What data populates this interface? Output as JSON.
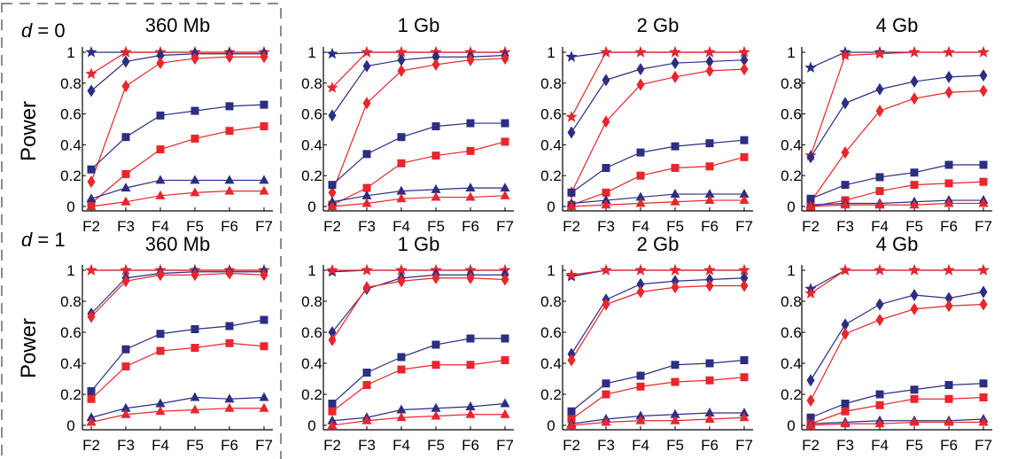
{
  "labels": {
    "ylabel": "Power",
    "row_labels": [
      "d = 0",
      "d = 1"
    ],
    "row_var": "d",
    "row_values": [
      "0",
      "1"
    ]
  },
  "colors": {
    "series_a": "#2b2e82",
    "series_b": "#e8262b",
    "axis": "#000000",
    "frame": "#666666"
  },
  "chart_data": [
    {
      "type": "line",
      "title": "360 Mb",
      "row": "d = 0",
      "categories": [
        "F2",
        "F3",
        "F4",
        "F5",
        "F6",
        "F7"
      ],
      "ylim": [
        0,
        1
      ],
      "yticks": [
        "0",
        "0.2",
        "0.4",
        "0.6",
        "0.8",
        "1"
      ],
      "series": [
        {
          "color": "#2b2e82",
          "marker": "star",
          "values": [
            1.0,
            1.0,
            1.0,
            1.0,
            1.0,
            1.0
          ]
        },
        {
          "color": "#e8262b",
          "marker": "star",
          "values": [
            0.86,
            1.0,
            1.0,
            1.0,
            1.0,
            1.0
          ]
        },
        {
          "color": "#2b2e82",
          "marker": "diamond",
          "values": [
            0.75,
            0.94,
            0.98,
            0.99,
            0.99,
            0.99
          ]
        },
        {
          "color": "#e8262b",
          "marker": "diamond",
          "values": [
            0.16,
            0.78,
            0.93,
            0.96,
            0.97,
            0.97
          ]
        },
        {
          "color": "#2b2e82",
          "marker": "square",
          "values": [
            0.24,
            0.45,
            0.59,
            0.62,
            0.65,
            0.66
          ]
        },
        {
          "color": "#e8262b",
          "marker": "square",
          "values": [
            0.02,
            0.21,
            0.37,
            0.44,
            0.49,
            0.52
          ]
        },
        {
          "color": "#2b2e82",
          "marker": "triangle",
          "values": [
            0.05,
            0.12,
            0.17,
            0.17,
            0.17,
            0.17
          ]
        },
        {
          "color": "#e8262b",
          "marker": "triangle",
          "values": [
            0.0,
            0.03,
            0.07,
            0.09,
            0.1,
            0.1
          ]
        }
      ]
    },
    {
      "type": "line",
      "title": "1 Gb",
      "row": "d = 0",
      "categories": [
        "F2",
        "F3",
        "F4",
        "F5",
        "F6",
        "F7"
      ],
      "ylim": [
        0,
        1
      ],
      "yticks": [
        "0",
        "0.2",
        "0.4",
        "0.6",
        "0.8",
        "1"
      ],
      "series": [
        {
          "color": "#2b2e82",
          "marker": "star",
          "values": [
            0.99,
            1.0,
            1.0,
            1.0,
            1.0,
            1.0
          ]
        },
        {
          "color": "#e8262b",
          "marker": "star",
          "values": [
            0.77,
            1.0,
            1.0,
            1.0,
            1.0,
            1.0
          ]
        },
        {
          "color": "#2b2e82",
          "marker": "diamond",
          "values": [
            0.59,
            0.91,
            0.95,
            0.97,
            0.97,
            0.98
          ]
        },
        {
          "color": "#e8262b",
          "marker": "diamond",
          "values": [
            0.09,
            0.67,
            0.88,
            0.92,
            0.95,
            0.96
          ]
        },
        {
          "color": "#2b2e82",
          "marker": "square",
          "values": [
            0.14,
            0.34,
            0.45,
            0.52,
            0.54,
            0.54
          ]
        },
        {
          "color": "#e8262b",
          "marker": "square",
          "values": [
            0.01,
            0.12,
            0.28,
            0.33,
            0.36,
            0.42
          ]
        },
        {
          "color": "#2b2e82",
          "marker": "triangle",
          "values": [
            0.03,
            0.07,
            0.1,
            0.11,
            0.12,
            0.12
          ]
        },
        {
          "color": "#e8262b",
          "marker": "triangle",
          "values": [
            0.0,
            0.02,
            0.05,
            0.06,
            0.06,
            0.07
          ]
        }
      ]
    },
    {
      "type": "line",
      "title": "2 Gb",
      "row": "d = 0",
      "categories": [
        "F2",
        "F3",
        "F4",
        "F5",
        "F6",
        "F7"
      ],
      "ylim": [
        0,
        1
      ],
      "yticks": [
        "0",
        "0.2",
        "0.4",
        "0.6",
        "0.8",
        "1"
      ],
      "series": [
        {
          "color": "#2b2e82",
          "marker": "star",
          "values": [
            0.97,
            1.0,
            1.0,
            1.0,
            1.0,
            1.0
          ]
        },
        {
          "color": "#e8262b",
          "marker": "star",
          "values": [
            0.58,
            1.0,
            1.0,
            1.0,
            1.0,
            1.0
          ]
        },
        {
          "color": "#2b2e82",
          "marker": "diamond",
          "values": [
            0.48,
            0.82,
            0.89,
            0.93,
            0.94,
            0.95
          ]
        },
        {
          "color": "#e8262b",
          "marker": "diamond",
          "values": [
            0.09,
            0.55,
            0.79,
            0.84,
            0.88,
            0.89
          ]
        },
        {
          "color": "#2b2e82",
          "marker": "square",
          "values": [
            0.09,
            0.25,
            0.35,
            0.39,
            0.41,
            0.43
          ]
        },
        {
          "color": "#e8262b",
          "marker": "square",
          "values": [
            0.01,
            0.09,
            0.2,
            0.25,
            0.26,
            0.32
          ]
        },
        {
          "color": "#2b2e82",
          "marker": "triangle",
          "values": [
            0.02,
            0.04,
            0.06,
            0.08,
            0.08,
            0.08
          ]
        },
        {
          "color": "#e8262b",
          "marker": "triangle",
          "values": [
            0.0,
            0.01,
            0.02,
            0.03,
            0.04,
            0.04
          ]
        }
      ]
    },
    {
      "type": "line",
      "title": "4 Gb",
      "row": "d = 0",
      "categories": [
        "F2",
        "F3",
        "F4",
        "F5",
        "F6",
        "F7"
      ],
      "ylim": [
        0,
        1
      ],
      "yticks": [
        "0",
        "0.2",
        "0.4",
        "0.6",
        "0.8",
        "1"
      ],
      "series": [
        {
          "color": "#2b2e82",
          "marker": "star",
          "values": [
            0.9,
            1.0,
            1.0,
            1.0,
            1.0,
            1.0
          ]
        },
        {
          "color": "#e8262b",
          "marker": "star",
          "values": [
            0.33,
            0.98,
            0.99,
            1.0,
            1.0,
            1.0
          ]
        },
        {
          "color": "#2b2e82",
          "marker": "diamond",
          "values": [
            0.32,
            0.67,
            0.76,
            0.81,
            0.84,
            0.85
          ]
        },
        {
          "color": "#e8262b",
          "marker": "diamond",
          "values": [
            0.03,
            0.35,
            0.62,
            0.7,
            0.74,
            0.75
          ]
        },
        {
          "color": "#2b2e82",
          "marker": "square",
          "values": [
            0.05,
            0.14,
            0.19,
            0.22,
            0.27,
            0.27
          ]
        },
        {
          "color": "#e8262b",
          "marker": "square",
          "values": [
            0.0,
            0.04,
            0.1,
            0.14,
            0.15,
            0.16
          ]
        },
        {
          "color": "#2b2e82",
          "marker": "triangle",
          "values": [
            0.01,
            0.02,
            0.02,
            0.03,
            0.04,
            0.04
          ]
        },
        {
          "color": "#e8262b",
          "marker": "triangle",
          "values": [
            0.0,
            0.01,
            0.01,
            0.01,
            0.02,
            0.02
          ]
        }
      ]
    },
    {
      "type": "line",
      "title": "360 Mb",
      "row": "d = 1",
      "categories": [
        "F2",
        "F3",
        "F4",
        "F5",
        "F6",
        "F7"
      ],
      "ylim": [
        0,
        1
      ],
      "yticks": [
        "0",
        "0.2",
        "0.4",
        "0.6",
        "0.8",
        "1"
      ],
      "series": [
        {
          "color": "#2b2e82",
          "marker": "star",
          "values": [
            1.0,
            1.0,
            1.0,
            1.0,
            1.0,
            1.0
          ]
        },
        {
          "color": "#e8262b",
          "marker": "star",
          "values": [
            1.0,
            1.0,
            1.0,
            1.0,
            1.0,
            1.0
          ]
        },
        {
          "color": "#2b2e82",
          "marker": "diamond",
          "values": [
            0.72,
            0.95,
            0.98,
            0.99,
            0.99,
            0.99
          ]
        },
        {
          "color": "#e8262b",
          "marker": "diamond",
          "values": [
            0.7,
            0.93,
            0.97,
            0.97,
            0.98,
            0.97
          ]
        },
        {
          "color": "#2b2e82",
          "marker": "square",
          "values": [
            0.22,
            0.49,
            0.59,
            0.62,
            0.64,
            0.68
          ]
        },
        {
          "color": "#e8262b",
          "marker": "square",
          "values": [
            0.17,
            0.38,
            0.48,
            0.5,
            0.53,
            0.51
          ]
        },
        {
          "color": "#2b2e82",
          "marker": "triangle",
          "values": [
            0.05,
            0.11,
            0.14,
            0.18,
            0.17,
            0.18
          ]
        },
        {
          "color": "#e8262b",
          "marker": "triangle",
          "values": [
            0.02,
            0.07,
            0.09,
            0.1,
            0.11,
            0.11
          ]
        }
      ]
    },
    {
      "type": "line",
      "title": "1 Gb",
      "row": "d = 1",
      "categories": [
        "F2",
        "F3",
        "F4",
        "F5",
        "F6",
        "F7"
      ],
      "ylim": [
        0,
        1
      ],
      "yticks": [
        "0",
        "0.2",
        "0.4",
        "0.6",
        "0.8",
        "1"
      ],
      "series": [
        {
          "color": "#2b2e82",
          "marker": "star",
          "values": [
            0.99,
            1.0,
            1.0,
            1.0,
            1.0,
            1.0
          ]
        },
        {
          "color": "#e8262b",
          "marker": "star",
          "values": [
            1.0,
            1.0,
            1.0,
            1.0,
            1.0,
            1.0
          ]
        },
        {
          "color": "#2b2e82",
          "marker": "diamond",
          "values": [
            0.6,
            0.88,
            0.95,
            0.97,
            0.97,
            0.97
          ]
        },
        {
          "color": "#e8262b",
          "marker": "diamond",
          "values": [
            0.55,
            0.89,
            0.93,
            0.95,
            0.95,
            0.94
          ]
        },
        {
          "color": "#2b2e82",
          "marker": "square",
          "values": [
            0.14,
            0.34,
            0.44,
            0.52,
            0.56,
            0.56
          ]
        },
        {
          "color": "#e8262b",
          "marker": "square",
          "values": [
            0.09,
            0.26,
            0.36,
            0.39,
            0.39,
            0.42
          ]
        },
        {
          "color": "#2b2e82",
          "marker": "triangle",
          "values": [
            0.03,
            0.05,
            0.1,
            0.11,
            0.12,
            0.14
          ]
        },
        {
          "color": "#e8262b",
          "marker": "triangle",
          "values": [
            0.0,
            0.03,
            0.05,
            0.06,
            0.07,
            0.07
          ]
        }
      ]
    },
    {
      "type": "line",
      "title": "2 Gb",
      "row": "d = 1",
      "categories": [
        "F2",
        "F3",
        "F4",
        "F5",
        "F6",
        "F7"
      ],
      "ylim": [
        0,
        1
      ],
      "yticks": [
        "0",
        "0.2",
        "0.4",
        "0.6",
        "0.8",
        "1"
      ],
      "series": [
        {
          "color": "#2b2e82",
          "marker": "star",
          "values": [
            0.96,
            1.0,
            1.0,
            1.0,
            1.0,
            1.0
          ]
        },
        {
          "color": "#e8262b",
          "marker": "star",
          "values": [
            0.97,
            1.0,
            1.0,
            1.0,
            1.0,
            1.0
          ]
        },
        {
          "color": "#2b2e82",
          "marker": "diamond",
          "values": [
            0.46,
            0.81,
            0.91,
            0.93,
            0.94,
            0.95
          ]
        },
        {
          "color": "#e8262b",
          "marker": "diamond",
          "values": [
            0.42,
            0.78,
            0.86,
            0.89,
            0.9,
            0.9
          ]
        },
        {
          "color": "#2b2e82",
          "marker": "square",
          "values": [
            0.09,
            0.27,
            0.32,
            0.39,
            0.4,
            0.42
          ]
        },
        {
          "color": "#e8262b",
          "marker": "square",
          "values": [
            0.04,
            0.2,
            0.25,
            0.28,
            0.29,
            0.31
          ]
        },
        {
          "color": "#2b2e82",
          "marker": "triangle",
          "values": [
            0.01,
            0.04,
            0.06,
            0.07,
            0.08,
            0.08
          ]
        },
        {
          "color": "#e8262b",
          "marker": "triangle",
          "values": [
            0.0,
            0.02,
            0.03,
            0.03,
            0.04,
            0.05
          ]
        }
      ]
    },
    {
      "type": "line",
      "title": "4 Gb",
      "row": "d = 1",
      "categories": [
        "F2",
        "F3",
        "F4",
        "F5",
        "F6",
        "F7"
      ],
      "ylim": [
        0,
        1
      ],
      "yticks": [
        "0",
        "0.2",
        "0.4",
        "0.6",
        "0.8",
        "1"
      ],
      "series": [
        {
          "color": "#2b2e82",
          "marker": "star",
          "values": [
            0.88,
            1.0,
            1.0,
            1.0,
            1.0,
            1.0
          ]
        },
        {
          "color": "#e8262b",
          "marker": "star",
          "values": [
            0.85,
            1.0,
            1.0,
            1.0,
            1.0,
            1.0
          ]
        },
        {
          "color": "#2b2e82",
          "marker": "diamond",
          "values": [
            0.29,
            0.65,
            0.78,
            0.84,
            0.82,
            0.86
          ]
        },
        {
          "color": "#e8262b",
          "marker": "diamond",
          "values": [
            0.16,
            0.59,
            0.68,
            0.75,
            0.77,
            0.78
          ]
        },
        {
          "color": "#2b2e82",
          "marker": "square",
          "values": [
            0.05,
            0.14,
            0.2,
            0.23,
            0.26,
            0.27
          ]
        },
        {
          "color": "#e8262b",
          "marker": "square",
          "values": [
            0.01,
            0.09,
            0.13,
            0.17,
            0.17,
            0.18
          ]
        },
        {
          "color": "#2b2e82",
          "marker": "triangle",
          "values": [
            0.01,
            0.02,
            0.03,
            0.03,
            0.03,
            0.04
          ]
        },
        {
          "color": "#e8262b",
          "marker": "triangle",
          "values": [
            0.0,
            0.01,
            0.01,
            0.02,
            0.02,
            0.02
          ]
        }
      ]
    }
  ]
}
